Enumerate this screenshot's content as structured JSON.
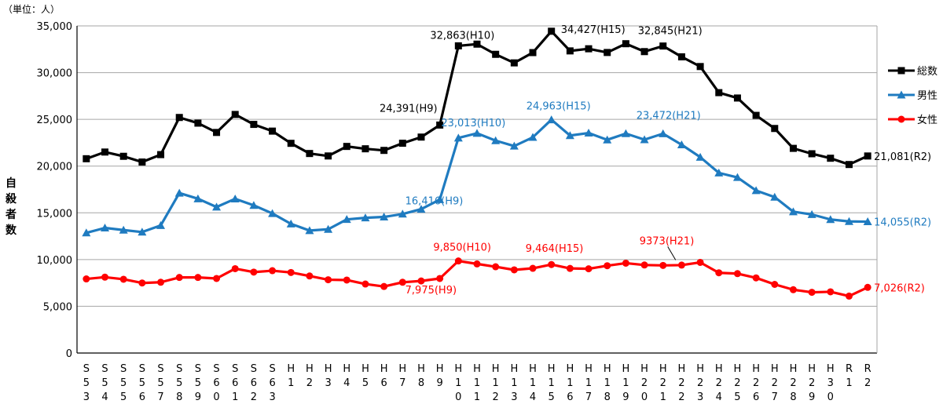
{
  "chart_data": {
    "type": "line",
    "unit_label": "（単位：人）",
    "ylabel": "自殺者数",
    "ylim": [
      0,
      35000
    ],
    "yticks": [
      0,
      5000,
      10000,
      15000,
      20000,
      25000,
      30000,
      35000
    ],
    "ytick_labels": [
      "0",
      "5,000",
      "10,000",
      "15,000",
      "20,000",
      "25,000",
      "30,000",
      "35,000"
    ],
    "grid": true,
    "legend_position": "right",
    "categories": [
      "S53",
      "S54",
      "S55",
      "S56",
      "S57",
      "S58",
      "S59",
      "S60",
      "S61",
      "S62",
      "S63",
      "H1",
      "H2",
      "H3",
      "H4",
      "H5",
      "H6",
      "H7",
      "H8",
      "H9",
      "H10",
      "H11",
      "H12",
      "H13",
      "H14",
      "H15",
      "H16",
      "H17",
      "H18",
      "H19",
      "H20",
      "H21",
      "H22",
      "H23",
      "H24",
      "H25",
      "H26",
      "H27",
      "H28",
      "H29",
      "H30",
      "R1",
      "R2"
    ],
    "series": [
      {
        "name": "総数",
        "color": "#000000",
        "marker": "square",
        "values": [
          20788,
          21503,
          21048,
          20434,
          21228,
          25202,
          24596,
          23599,
          25524,
          24460,
          23742,
          22436,
          21346,
          21084,
          22104,
          21851,
          21679,
          22445,
          23104,
          24391,
          32863,
          33048,
          31957,
          31042,
          32143,
          34427,
          32325,
          32552,
          32155,
          33093,
          32249,
          32845,
          31690,
          30651,
          27858,
          27283,
          25427,
          24025,
          21897,
          21321,
          20840,
          20169,
          21081
        ]
      },
      {
        "name": "男性",
        "color": "#1f7bc0",
        "marker": "triangle",
        "values": [
          12859,
          13386,
          13155,
          12942,
          13654,
          17116,
          16508,
          15624,
          16497,
          15802,
          14934,
          13818,
          13102,
          13242,
          14296,
          14468,
          14560,
          14874,
          15393,
          16416,
          23013,
          23512,
          22727,
          22144,
          23080,
          24963,
          23272,
          23540,
          22813,
          23478,
          22831,
          23472,
          22283,
          20955,
          19273,
          18787,
          17386,
          16681,
          15121,
          14826,
          14290,
          14078,
          14055
        ]
      },
      {
        "name": "女性",
        "color": "#ff0000",
        "marker": "circle",
        "values": [
          7929,
          8117,
          7893,
          7492,
          7574,
          8086,
          8088,
          7975,
          9027,
          8658,
          8808,
          8618,
          8244,
          7842,
          7808,
          7383,
          7119,
          7571,
          7711,
          7975,
          9850,
          9536,
          9230,
          8898,
          9063,
          9464,
          9053,
          9012,
          9342,
          9615,
          9418,
          9373,
          9407,
          9696,
          8585,
          8496,
          8041,
          7344,
          6776,
          6495,
          6550,
          6091,
          7026
        ]
      }
    ],
    "annotations": [
      {
        "series": 0,
        "index": 19,
        "text": "24,391(H9)"
      },
      {
        "series": 0,
        "index": 20,
        "text": "32,863(H10)"
      },
      {
        "series": 0,
        "index": 25,
        "text": "34,427(H15)"
      },
      {
        "series": 0,
        "index": 31,
        "text": "32,845(H21)"
      },
      {
        "series": 0,
        "index": 42,
        "text": "21,081(R2)"
      },
      {
        "series": 1,
        "index": 19,
        "text": "16,416(H9)"
      },
      {
        "series": 1,
        "index": 20,
        "text": "23,013(H10)"
      },
      {
        "series": 1,
        "index": 25,
        "text": "24,963(H15)"
      },
      {
        "series": 1,
        "index": 31,
        "text": "23,472(H21)"
      },
      {
        "series": 1,
        "index": 42,
        "text": "14,055(R2)"
      },
      {
        "series": 2,
        "index": 19,
        "text": "7,975(H9)"
      },
      {
        "series": 2,
        "index": 20,
        "text": "9,850(H10)"
      },
      {
        "series": 2,
        "index": 25,
        "text": "9,464(H15)"
      },
      {
        "series": 2,
        "index": 31,
        "text": "9373(H21)"
      },
      {
        "series": 2,
        "index": 42,
        "text": "7,026(R2)"
      }
    ]
  }
}
